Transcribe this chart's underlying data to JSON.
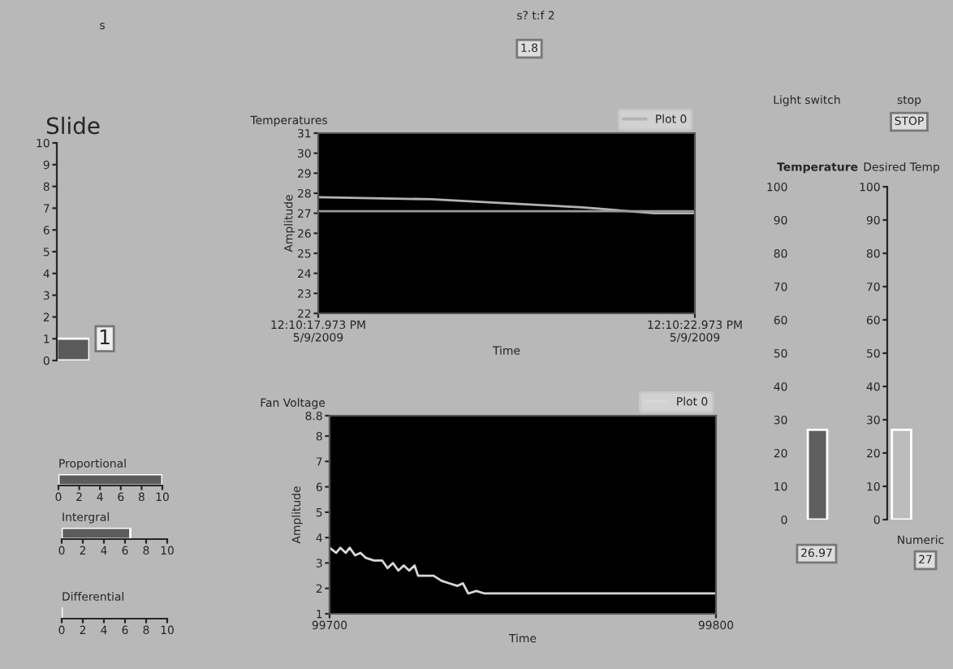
{
  "chart_data": [
    {
      "type": "bar",
      "title": "Slide",
      "categories": [
        null
      ],
      "values": [
        1
      ],
      "colors": [
        "#5a5a5a"
      ],
      "value_labels": [
        "1"
      ],
      "ylim": [
        0,
        10
      ],
      "yticks": [
        0,
        1,
        2,
        3,
        4,
        5,
        6,
        7,
        8,
        9,
        10
      ],
      "tick_labels": "y",
      "grid": false
    },
    {
      "type": "line",
      "title": "Temperatures",
      "xlabel": "Time",
      "ylabel": "Amplitude",
      "legend": "top right",
      "grid": false,
      "series": [
        {
          "name": "Plot 0",
          "color": "#b4b4b4",
          "x": [
            "2009-05-09T12:10:17.973",
            "2009-05-09T12:10:19.473",
            "2009-05-09T12:10:20.473",
            "2009-05-09T12:10:21.473",
            "2009-05-09T12:10:22.433",
            "2009-05-09T12:10:22.973"
          ],
          "values": [
            27.8,
            27.7,
            27.5,
            27.3,
            27.0,
            27.0
          ]
        },
        {
          "color": "#9a9a9a",
          "x": [
            "2009-05-09T12:10:17.973",
            "2009-05-09T12:10:22.973"
          ],
          "values": [
            27.1,
            27.1
          ]
        }
      ],
      "xlim": [
        "2009-05-09T12:10:17.973",
        "2009-05-09T12:10:22.973"
      ],
      "xticks": [
        {
          "value": "2009-05-09T12:10:17.973",
          "label": "12:10:17.973 PM\n5/9/2009"
        },
        {
          "value": "2009-05-09T12:10:22.973",
          "label": "12:10:22.973 PM\n5/9/2009"
        }
      ],
      "ylim": [
        22,
        31
      ],
      "yticks": [
        22,
        23,
        24,
        25,
        26,
        27,
        28,
        29,
        30,
        31
      ]
    },
    {
      "type": "line",
      "title": "Fan Voltage",
      "xlabel": "Time",
      "ylabel": "Amplitude",
      "legend": "top right",
      "grid": false,
      "series": [
        {
          "name": "Plot 0",
          "color": "#d8d8d8",
          "x": [
            99700,
            99701.7,
            99702.8,
            99704.2,
            99705.2,
            99706.6,
            99708,
            99709.4,
            99711.5,
            99713.6,
            99715,
            99716.4,
            99717.8,
            99719.2,
            99720.6,
            99722,
            99722.9,
            99724.8,
            99726.9,
            99729,
            99731,
            99733.1,
            99734.5,
            99735.9,
            99738,
            99740.1,
            99742.2,
            99800
          ],
          "values": [
            3.6,
            3.4,
            3.6,
            3.4,
            3.6,
            3.3,
            3.4,
            3.2,
            3.1,
            3.1,
            2.8,
            3.0,
            2.7,
            2.9,
            2.7,
            2.9,
            2.5,
            2.5,
            2.5,
            2.3,
            2.2,
            2.1,
            2.2,
            1.8,
            1.9,
            1.8,
            1.8,
            1.8
          ]
        }
      ],
      "xlim": [
        99700,
        99800
      ],
      "xticks": [
        99700,
        99800
      ],
      "ylim": [
        1,
        8.8
      ],
      "yticks": [
        1,
        2,
        3,
        4,
        5,
        6,
        7,
        8,
        8.8
      ]
    },
    {
      "type": "bar",
      "orientation": "horizontal",
      "title": "Proportional",
      "categories": [
        null
      ],
      "values": [
        10
      ],
      "colors": [
        "#5c5c5c"
      ],
      "xlim": [
        0,
        10
      ],
      "xticks": [
        0,
        2,
        4,
        6,
        8,
        10
      ],
      "tick_labels": "x",
      "grid": false
    },
    {
      "type": "bar",
      "orientation": "horizontal",
      "title": "Intergral",
      "categories": [
        null
      ],
      "values": [
        6.5
      ],
      "colors": [
        "#5c5c5c"
      ],
      "xlim": [
        0,
        10
      ],
      "xticks": [
        0,
        2,
        4,
        6,
        8,
        10
      ],
      "tick_labels": "x",
      "grid": false
    },
    {
      "type": "bar",
      "orientation": "horizontal",
      "title": "Differential",
      "categories": [
        null
      ],
      "values": [
        0
      ],
      "colors": [
        "#5c5c5c"
      ],
      "xlim": [
        0,
        10
      ],
      "xticks": [
        0,
        2,
        4,
        6,
        8,
        10
      ],
      "tick_labels": "x",
      "grid": false
    },
    {
      "type": "bar",
      "categories": [
        "Temperature",
        "Desired Temp"
      ],
      "grid": false,
      "series": [
        {
          "color": "#5f5f5f",
          "values": [
            27,
            null
          ]
        },
        {
          "color": "#bcbcbc",
          "values": [
            null,
            27
          ],
          "axis": "y2"
        }
      ],
      "ylim": [
        0,
        100
      ],
      "yticks": [
        0,
        10,
        20,
        30,
        40,
        50,
        60,
        70,
        80,
        90,
        100
      ],
      "y2lim": [
        0,
        100
      ],
      "y2ticks": [
        0,
        10,
        20,
        30,
        40,
        50,
        60,
        70,
        80,
        90,
        100
      ]
    },
    {
      "type": "other",
      "annotations": [
        "s"
      ]
    },
    {
      "type": "other",
      "annotations": [
        "s? t:f 2",
        "1.8"
      ]
    },
    {
      "type": "other",
      "annotations": [
        "Light switch"
      ]
    },
    {
      "type": "other",
      "annotations": [
        "stop",
        "STOP"
      ]
    },
    {
      "type": "other",
      "annotations": [
        "26.97"
      ]
    },
    {
      "type": "other",
      "annotations": [
        "Numeric",
        "27"
      ]
    }
  ]
}
